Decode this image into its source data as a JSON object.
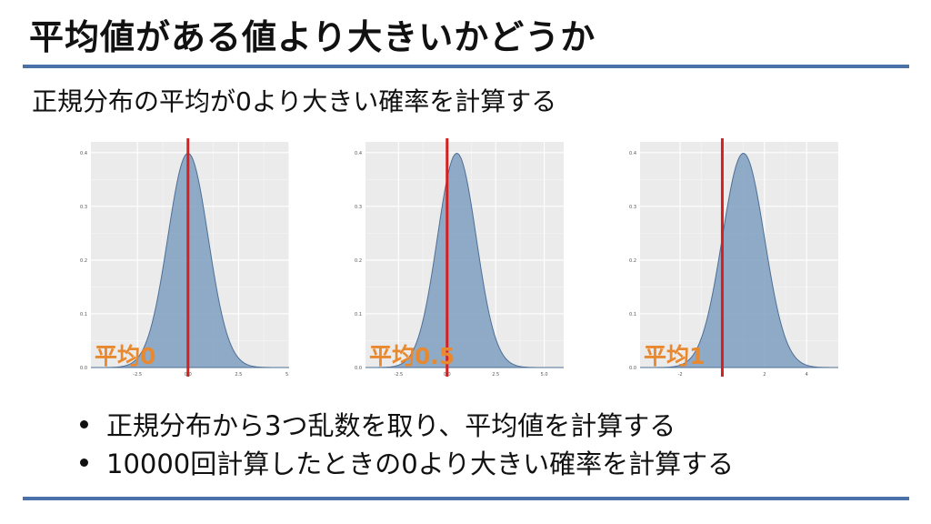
{
  "slide": {
    "title": "平均値がある値より大きいかどうか",
    "subtitle": "正規分布の平均が0より大きい確率を計算する",
    "bullets": [
      "正規分布から3つ乱数を取り、平均値を計算する",
      "10000回計算したときの0より大きい確率を計算する"
    ]
  },
  "colors": {
    "rule": "#4a72a8",
    "fill": "#7f9fc0",
    "stroke": "#4d6f96",
    "vline": "#d42020",
    "label": "#e8892f",
    "plot_bg": "#ebebeb"
  },
  "chart_data": [
    {
      "type": "area",
      "label": "平均0",
      "mean": 0,
      "sd": 1,
      "vline_x": 0,
      "xlim": [
        -4.8,
        5.0
      ],
      "ylim": [
        0,
        0.42
      ],
      "x_ticks": [
        "-2.5",
        "0.0",
        "2.5",
        "5.0"
      ],
      "x_tick_values": [
        -2.5,
        0,
        2.5,
        5
      ],
      "y_ticks": [
        "0.0",
        "0.1",
        "0.2",
        "0.3",
        "0.4"
      ],
      "y_tick_values": [
        0,
        0.1,
        0.2,
        0.3,
        0.4
      ],
      "grid": true
    },
    {
      "type": "area",
      "label": "平均0.5",
      "mean": 0.5,
      "sd": 1,
      "vline_x": 0,
      "xlim": [
        -4.2,
        6.0
      ],
      "ylim": [
        0,
        0.42
      ],
      "x_ticks": [
        "-2.5",
        "0.0",
        "2.5",
        "5.0"
      ],
      "x_tick_values": [
        -2.5,
        0,
        2.5,
        5
      ],
      "y_ticks": [
        "0.0",
        "0.1",
        "0.2",
        "0.3",
        "0.4"
      ],
      "y_tick_values": [
        0,
        0.1,
        0.2,
        0.3,
        0.4
      ],
      "grid": true
    },
    {
      "type": "area",
      "label": "平均1",
      "mean": 1,
      "sd": 1,
      "vline_x": 0,
      "xlim": [
        -3.9,
        5.5
      ],
      "ylim": [
        0,
        0.42
      ],
      "x_ticks": [
        "-2",
        "0",
        "2",
        "4"
      ],
      "x_tick_values": [
        -2,
        0,
        2,
        4
      ],
      "y_ticks": [
        "0.0",
        "0.1",
        "0.2",
        "0.3",
        "0.4"
      ],
      "y_tick_values": [
        0,
        0.1,
        0.2,
        0.3,
        0.4
      ],
      "grid": true
    }
  ]
}
